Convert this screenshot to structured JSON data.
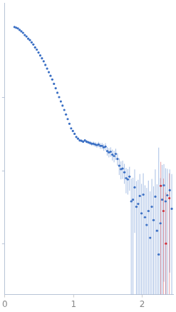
{
  "chart_data": {
    "type": "scatter",
    "log": "y",
    "grid": false,
    "tick_labels": "x",
    "xlim": [
      0,
      2.45
    ],
    "xticks": [
      0,
      1,
      2
    ],
    "ylim": [
      0.002,
      20
    ],
    "yticks": [
      0.01,
      0.1,
      1
    ],
    "series": [
      {
        "color": "#3a6fc4",
        "marker": "circle",
        "x": [
          0.14,
          0.165,
          0.19,
          0.215,
          0.24,
          0.265,
          0.29,
          0.315,
          0.34,
          0.365,
          0.39,
          0.415,
          0.44,
          0.465,
          0.49,
          0.515,
          0.54,
          0.565,
          0.59,
          0.615,
          0.64,
          0.665,
          0.69,
          0.715,
          0.74,
          0.765,
          0.79,
          0.815,
          0.84,
          0.865,
          0.89,
          0.915,
          0.94,
          0.965,
          0.99,
          1.015,
          1.04,
          1.065,
          1.09,
          1.115,
          1.14,
          1.165,
          1.19,
          1.215,
          1.24,
          1.265,
          1.29,
          1.315,
          1.34,
          1.365,
          1.39,
          1.415,
          1.44,
          1.465,
          1.49,
          1.515,
          1.54,
          1.565,
          1.59,
          1.615,
          1.64,
          1.665,
          1.69,
          1.715,
          1.74,
          1.765,
          1.79,
          1.815,
          1.84,
          1.865,
          1.89,
          1.915,
          1.94,
          1.965,
          1.99,
          2.015,
          2.04,
          2.065,
          2.09,
          2.115,
          2.14,
          2.165,
          2.19,
          2.215,
          2.24,
          2.265,
          2.29,
          2.315,
          2.34,
          2.365,
          2.4,
          2.43
        ],
        "values": [
          9.33,
          9.12,
          8.91,
          8.51,
          8.13,
          7.76,
          7.24,
          6.92,
          6.46,
          6.17,
          5.75,
          5.37,
          4.9,
          4.57,
          4.17,
          3.8,
          3.47,
          3.16,
          2.82,
          2.51,
          2.24,
          2.0,
          1.78,
          1.55,
          1.35,
          1.17,
          1.02,
          0.89,
          0.78,
          0.68,
          0.59,
          0.51,
          0.44,
          0.38,
          0.35,
          0.32,
          0.29,
          0.275,
          0.26,
          0.257,
          0.25,
          0.26,
          0.25,
          0.245,
          0.24,
          0.234,
          0.234,
          0.229,
          0.224,
          0.229,
          0.219,
          0.219,
          0.209,
          0.214,
          0.186,
          0.178,
          0.182,
          0.166,
          0.159,
          0.17,
          0.145,
          0.117,
          0.105,
          0.107,
          0.095,
          0.079,
          0.076,
          0.083,
          0.038,
          0.04,
          0.059,
          0.032,
          0.035,
          0.045,
          0.026,
          0.047,
          0.023,
          0.018,
          0.028,
          0.012,
          0.032,
          0.021,
          0.044,
          0.015,
          0.0071,
          0.019,
          0.04,
          0.063,
          0.038,
          0.046,
          0.054,
          0.03
        ],
        "errors": [
          0.1,
          0.1,
          0.1,
          0.1,
          0.1,
          0.1,
          0.1,
          0.1,
          0.08,
          0.08,
          0.07,
          0.07,
          0.06,
          0.06,
          0.05,
          0.05,
          0.04,
          0.04,
          0.03,
          0.03,
          0.03,
          0.03,
          0.02,
          0.02,
          0.02,
          0.02,
          0.015,
          0.013,
          0.012,
          0.011,
          0.01,
          0.009,
          0.008,
          0.007,
          0.007,
          0.007,
          0.008,
          0.008,
          0.009,
          0.01,
          0.01,
          0.011,
          0.012,
          0.013,
          0.014,
          0.015,
          0.016,
          0.017,
          0.018,
          0.019,
          0.02,
          0.021,
          0.022,
          0.024,
          0.025,
          0.026,
          0.027,
          0.028,
          0.029,
          0.03,
          0.028,
          0.03,
          0.029,
          0.03,
          0.029,
          0.03,
          0.029,
          0.03,
          0.04,
          0.04,
          0.045,
          0.04,
          0.04,
          0.045,
          0.04,
          0.045,
          0.04,
          0.04,
          0.045,
          0.04,
          0.045,
          0.04,
          0.06,
          0.05,
          0.2,
          0.06,
          0.08,
          0.06,
          0.07,
          0.06,
          0.05,
          0.06
        ]
      },
      {
        "color": "#d0303a",
        "marker": "circle",
        "x": [
          2.27,
          2.31,
          2.345,
          2.395
        ],
        "values": [
          0.062,
          0.028,
          0.01,
          0.042
        ],
        "errors": [
          0.07,
          0.05,
          0.04,
          0.05
        ]
      }
    ]
  }
}
